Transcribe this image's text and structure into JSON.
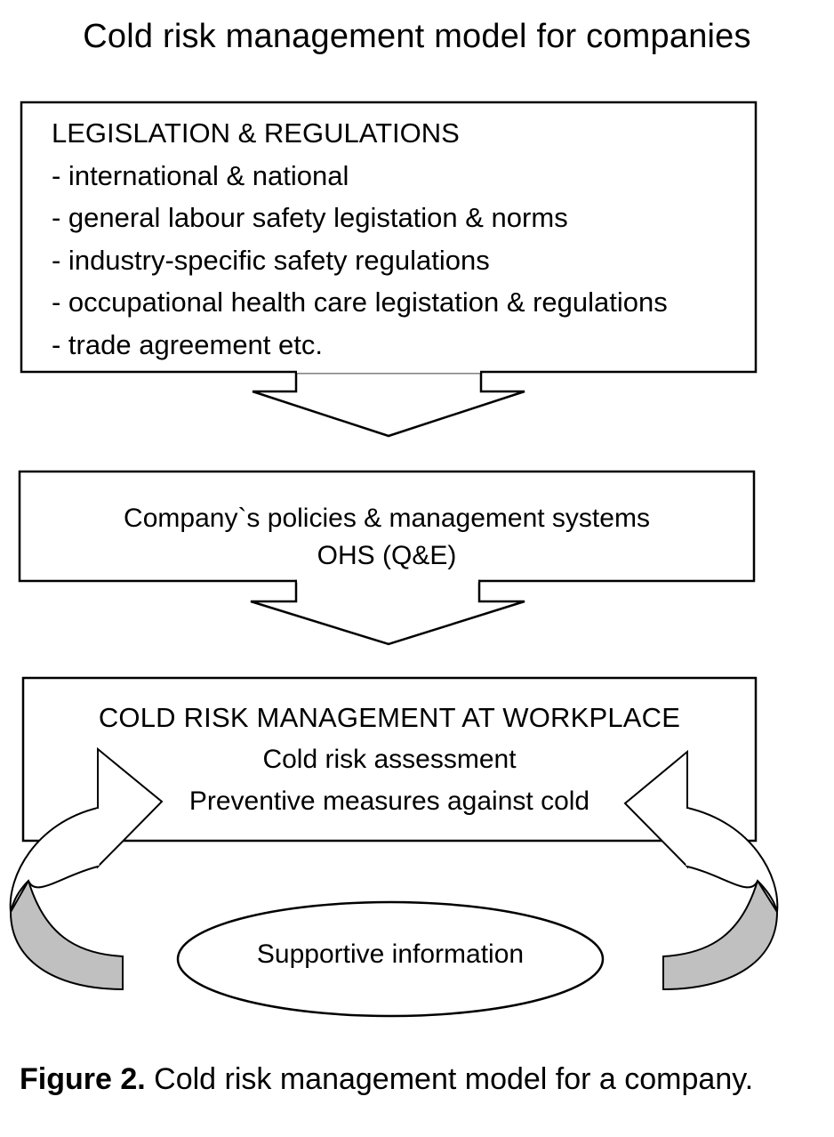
{
  "title": "Cold risk management model for companies",
  "legislation_box": {
    "heading": "LEGISLATION & REGULATIONS",
    "items": [
      "- international & national",
      "- general labour safety legistation & norms",
      "- industry-specific safety regulations",
      "- occupational health care legistation & regulations",
      "- trade agreement etc."
    ]
  },
  "policies_box": {
    "line1": "Company`s policies & management systems",
    "line2": "OHS (Q&E)"
  },
  "workplace_box": {
    "heading": "COLD RISK MANAGEMENT AT WORKPLACE",
    "line1": "Cold risk assessment",
    "line2": "Preventive measures against cold"
  },
  "supportive": {
    "label": "Supportive information"
  },
  "caption": {
    "label": "Figure 2.",
    "text": " Cold risk management model for a company."
  },
  "colors": {
    "stroke": "#000000",
    "fill": "#ffffff",
    "arrow_shadow": "#c0c0c0"
  }
}
